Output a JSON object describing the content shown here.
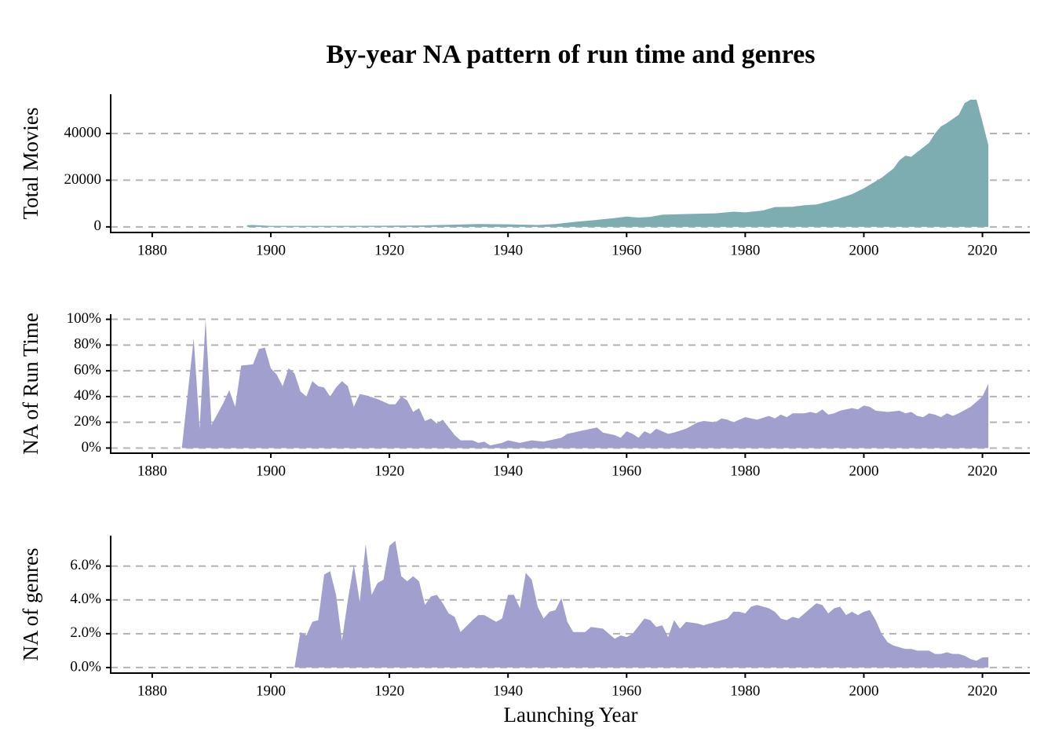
{
  "chart_data": [
    {
      "type": "area",
      "title": "By-year NA pattern of run time and genres",
      "y_label": "Total Movies",
      "color": "#7dadb1",
      "grid": true,
      "xlim": [
        1873,
        2028
      ],
      "xticks": [
        1880,
        1900,
        1920,
        1940,
        1960,
        1980,
        2000,
        2020
      ],
      "ylim": [
        -2400,
        56800
      ],
      "yticks": [
        0,
        20000,
        40000
      ],
      "x": [
        1896,
        1897,
        1900,
        1910,
        1920,
        1925,
        1930,
        1935,
        1940,
        1945,
        1948,
        1950,
        1952,
        1955,
        1958,
        1960,
        1962,
        1964,
        1966,
        1970,
        1975,
        1978,
        1980,
        1983,
        1985,
        1988,
        1990,
        1992,
        1995,
        1998,
        2000,
        2003,
        2005,
        2006,
        2007,
        2008,
        2010,
        2011,
        2012,
        2013,
        2014,
        2016,
        2017,
        2018,
        2019,
        2020,
        2021
      ],
      "values": [
        700,
        800,
        400,
        400,
        500,
        600,
        900,
        1200,
        1100,
        800,
        1200,
        1800,
        2300,
        3000,
        3800,
        4400,
        4000,
        4300,
        5200,
        5500,
        5800,
        6500,
        6200,
        7000,
        8500,
        8600,
        9300,
        9600,
        11500,
        14000,
        16500,
        21000,
        25000,
        28500,
        30500,
        30000,
        34000,
        36000,
        40000,
        43000,
        44500,
        48000,
        53000,
        54500,
        54500,
        45000,
        35000
      ]
    },
    {
      "type": "area",
      "y_label": "NA of Run Time",
      "color": "#a09fce",
      "grid": true,
      "xlim": [
        1873,
        2028
      ],
      "xticks": [
        1880,
        1900,
        1920,
        1940,
        1960,
        1980,
        2000,
        2020
      ],
      "ylim": [
        -4,
        104
      ],
      "yticks": [
        {
          "value": 0,
          "label": "0%"
        },
        {
          "value": 20,
          "label": "20%"
        },
        {
          "value": 40,
          "label": "40%"
        },
        {
          "value": 60,
          "label": "60%"
        },
        {
          "value": 80,
          "label": "80%"
        },
        {
          "value": 100,
          "label": "100%"
        }
      ],
      "x": [
        1885,
        1887,
        1888,
        1889,
        1890,
        1892,
        1893,
        1894,
        1895,
        1897,
        1898,
        1899,
        1900,
        1901,
        1902,
        1903,
        1904,
        1905,
        1906,
        1907,
        1908,
        1909,
        1910,
        1911,
        1912,
        1913,
        1914,
        1915,
        1916,
        1918,
        1920,
        1921,
        1922,
        1923,
        1924,
        1925,
        1926,
        1927,
        1928,
        1929,
        1930,
        1931,
        1932,
        1934,
        1935,
        1936,
        1937,
        1939,
        1940,
        1942,
        1944,
        1946,
        1948,
        1949,
        1950,
        1952,
        1954,
        1955,
        1956,
        1958,
        1959,
        1960,
        1961,
        1962,
        1963,
        1964,
        1965,
        1967,
        1968,
        1970,
        1972,
        1973,
        1975,
        1976,
        1977,
        1978,
        1980,
        1982,
        1984,
        1985,
        1986,
        1987,
        1988,
        1990,
        1991,
        1992,
        1993,
        1994,
        1995,
        1996,
        1998,
        1999,
        2000,
        2001,
        2002,
        2004,
        2006,
        2007,
        2008,
        2009,
        2010,
        2011,
        2012,
        2013,
        2014,
        2015,
        2016,
        2018,
        2020,
        2021
      ],
      "values": [
        0,
        85,
        15,
        100,
        18,
        35,
        45,
        32,
        64,
        65,
        77,
        78,
        62,
        57,
        48,
        62,
        58,
        44,
        40,
        52,
        48,
        47,
        40,
        47,
        52,
        48,
        32,
        42,
        41,
        38,
        34,
        34,
        40,
        37,
        28,
        31,
        21,
        23,
        19,
        22,
        16,
        10,
        6,
        6,
        4,
        5,
        2,
        4,
        6,
        4,
        6,
        5,
        7,
        8,
        11,
        13,
        15,
        16,
        12,
        10,
        8,
        13,
        11,
        8,
        13,
        11,
        15,
        11,
        12,
        15,
        20,
        21,
        20,
        23,
        22,
        20,
        24,
        22,
        25,
        23,
        26,
        24,
        27,
        27,
        28,
        27,
        30,
        26,
        27,
        29,
        31,
        30,
        33,
        32,
        29,
        28,
        29,
        27,
        28,
        25,
        24,
        27,
        26,
        24,
        27,
        25,
        27,
        32,
        40,
        50
      ]
    },
    {
      "type": "area",
      "y_label": "NA of genres",
      "x_label": "Launching Year",
      "color": "#a09fce",
      "grid": true,
      "xlim": [
        1873,
        2028
      ],
      "xticks": [
        1880,
        1900,
        1920,
        1940,
        1960,
        1980,
        2000,
        2020
      ],
      "ylim": [
        -0.33,
        7.8
      ],
      "yticks": [
        {
          "value": 0,
          "label": "0.0%"
        },
        {
          "value": 2,
          "label": "2.0%"
        },
        {
          "value": 4,
          "label": "4.0%"
        },
        {
          "value": 6,
          "label": "6.0%"
        }
      ],
      "x": [
        1904,
        1905,
        1906,
        1907,
        1908,
        1909,
        1910,
        1911,
        1912,
        1913,
        1914,
        1915,
        1916,
        1917,
        1918,
        1919,
        1920,
        1921,
        1922,
        1923,
        1924,
        1925,
        1926,
        1927,
        1928,
        1929,
        1930,
        1931,
        1932,
        1934,
        1935,
        1936,
        1938,
        1939,
        1940,
        1941,
        1942,
        1943,
        1944,
        1945,
        1946,
        1947,
        1948,
        1949,
        1950,
        1951,
        1953,
        1954,
        1956,
        1958,
        1959,
        1960,
        1961,
        1963,
        1964,
        1965,
        1966,
        1967,
        1968,
        1969,
        1970,
        1972,
        1973,
        1975,
        1977,
        1978,
        1979,
        1980,
        1981,
        1982,
        1984,
        1985,
        1986,
        1987,
        1988,
        1989,
        1990,
        1991,
        1992,
        1993,
        1994,
        1995,
        1996,
        1997,
        1998,
        1999,
        2000,
        2001,
        2002,
        2003,
        2004,
        2005,
        2006,
        2007,
        2008,
        2009,
        2010,
        2011,
        2012,
        2013,
        2014,
        2015,
        2016,
        2017,
        2018,
        2019,
        2020,
        2021
      ],
      "values": [
        0,
        2.1,
        1.9,
        2.7,
        2.8,
        5.5,
        5.7,
        4.3,
        1.6,
        4,
        6.1,
        3.9,
        7.3,
        4.3,
        5.0,
        5.2,
        7.2,
        7.5,
        5.4,
        5.1,
        5.4,
        5.1,
        3.7,
        4.2,
        4.3,
        3.8,
        3.2,
        3.0,
        2.1,
        2.8,
        3.1,
        3.1,
        2.7,
        2.9,
        4.3,
        4.3,
        3.5,
        5.6,
        5.2,
        3.6,
        2.9,
        3.3,
        3.4,
        4.1,
        2.7,
        2.1,
        2.1,
        2.4,
        2.3,
        1.7,
        1.9,
        1.8,
        2.0,
        2.9,
        2.8,
        2.4,
        2.5,
        1.8,
        2.8,
        2.3,
        2.7,
        2.6,
        2.5,
        2.7,
        2.9,
        3.3,
        3.3,
        3.2,
        3.6,
        3.7,
        3.5,
        3.3,
        2.9,
        2.8,
        3.0,
        2.9,
        3.2,
        3.5,
        3.8,
        3.7,
        3.2,
        3.5,
        3.6,
        3.1,
        3.3,
        3.1,
        3.3,
        3.4,
        2.8,
        2.0,
        1.5,
        1.3,
        1.2,
        1.1,
        1.1,
        1.0,
        1.0,
        1.0,
        0.8,
        0.8,
        0.9,
        0.8,
        0.8,
        0.7,
        0.5,
        0.4,
        0.6,
        0.6
      ]
    }
  ]
}
